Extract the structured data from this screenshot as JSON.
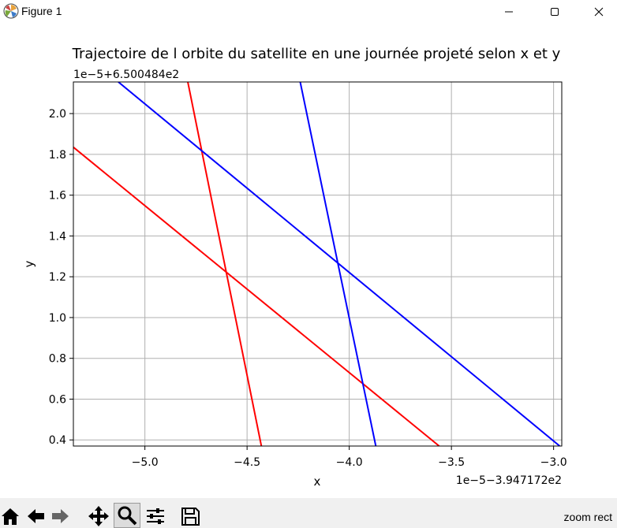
{
  "window": {
    "title": "Figure 1",
    "icon": "matplotlib-logo-icon"
  },
  "toolbar": {
    "buttons": [
      {
        "name": "home-icon"
      },
      {
        "name": "back-arrow-icon"
      },
      {
        "name": "forward-arrow-icon"
      },
      {
        "name": "pan-move-icon"
      },
      {
        "name": "zoom-magnifier-icon",
        "active": true
      },
      {
        "name": "subplots-configure-icon"
      },
      {
        "name": "save-floppy-icon"
      }
    ],
    "message": "zoom rect"
  },
  "chart_data": {
    "type": "line",
    "title": "Trajectoire de l orbite du satellite en une journée projeté selon x et y",
    "xlabel": "x",
    "ylabel": "y",
    "x_offset_label": "1e−5−3.947172e2",
    "y_offset_label": "1e−5+6.500484e2",
    "xlim": [
      -5.35,
      -2.96
    ],
    "ylim": [
      0.37,
      2.155
    ],
    "xticks": [
      -5.0,
      -4.5,
      -4.0,
      -3.5,
      -3.0
    ],
    "xtick_labels": [
      "−5.0",
      "−4.5",
      "−4.0",
      "−3.5",
      "−3.0"
    ],
    "yticks": [
      0.4,
      0.6,
      0.8,
      1.0,
      1.2,
      1.4,
      1.6,
      1.8,
      2.0
    ],
    "ytick_labels": [
      "0.4",
      "0.6",
      "0.8",
      "1.0",
      "1.2",
      "1.4",
      "1.6",
      "1.8",
      "2.0"
    ],
    "grid": true,
    "series": [
      {
        "color": "#ff0000",
        "x": [
          -5.35,
          -3.56
        ],
        "y": [
          1.835,
          0.37
        ]
      },
      {
        "color": "#ff0000",
        "x": [
          -4.79,
          -4.43
        ],
        "y": [
          2.155,
          0.37
        ]
      },
      {
        "color": "#0000ff",
        "x": [
          -5.13,
          -2.97
        ],
        "y": [
          2.155,
          0.37
        ]
      },
      {
        "color": "#0000ff",
        "x": [
          -4.24,
          -3.87
        ],
        "y": [
          2.155,
          0.37
        ]
      }
    ]
  }
}
